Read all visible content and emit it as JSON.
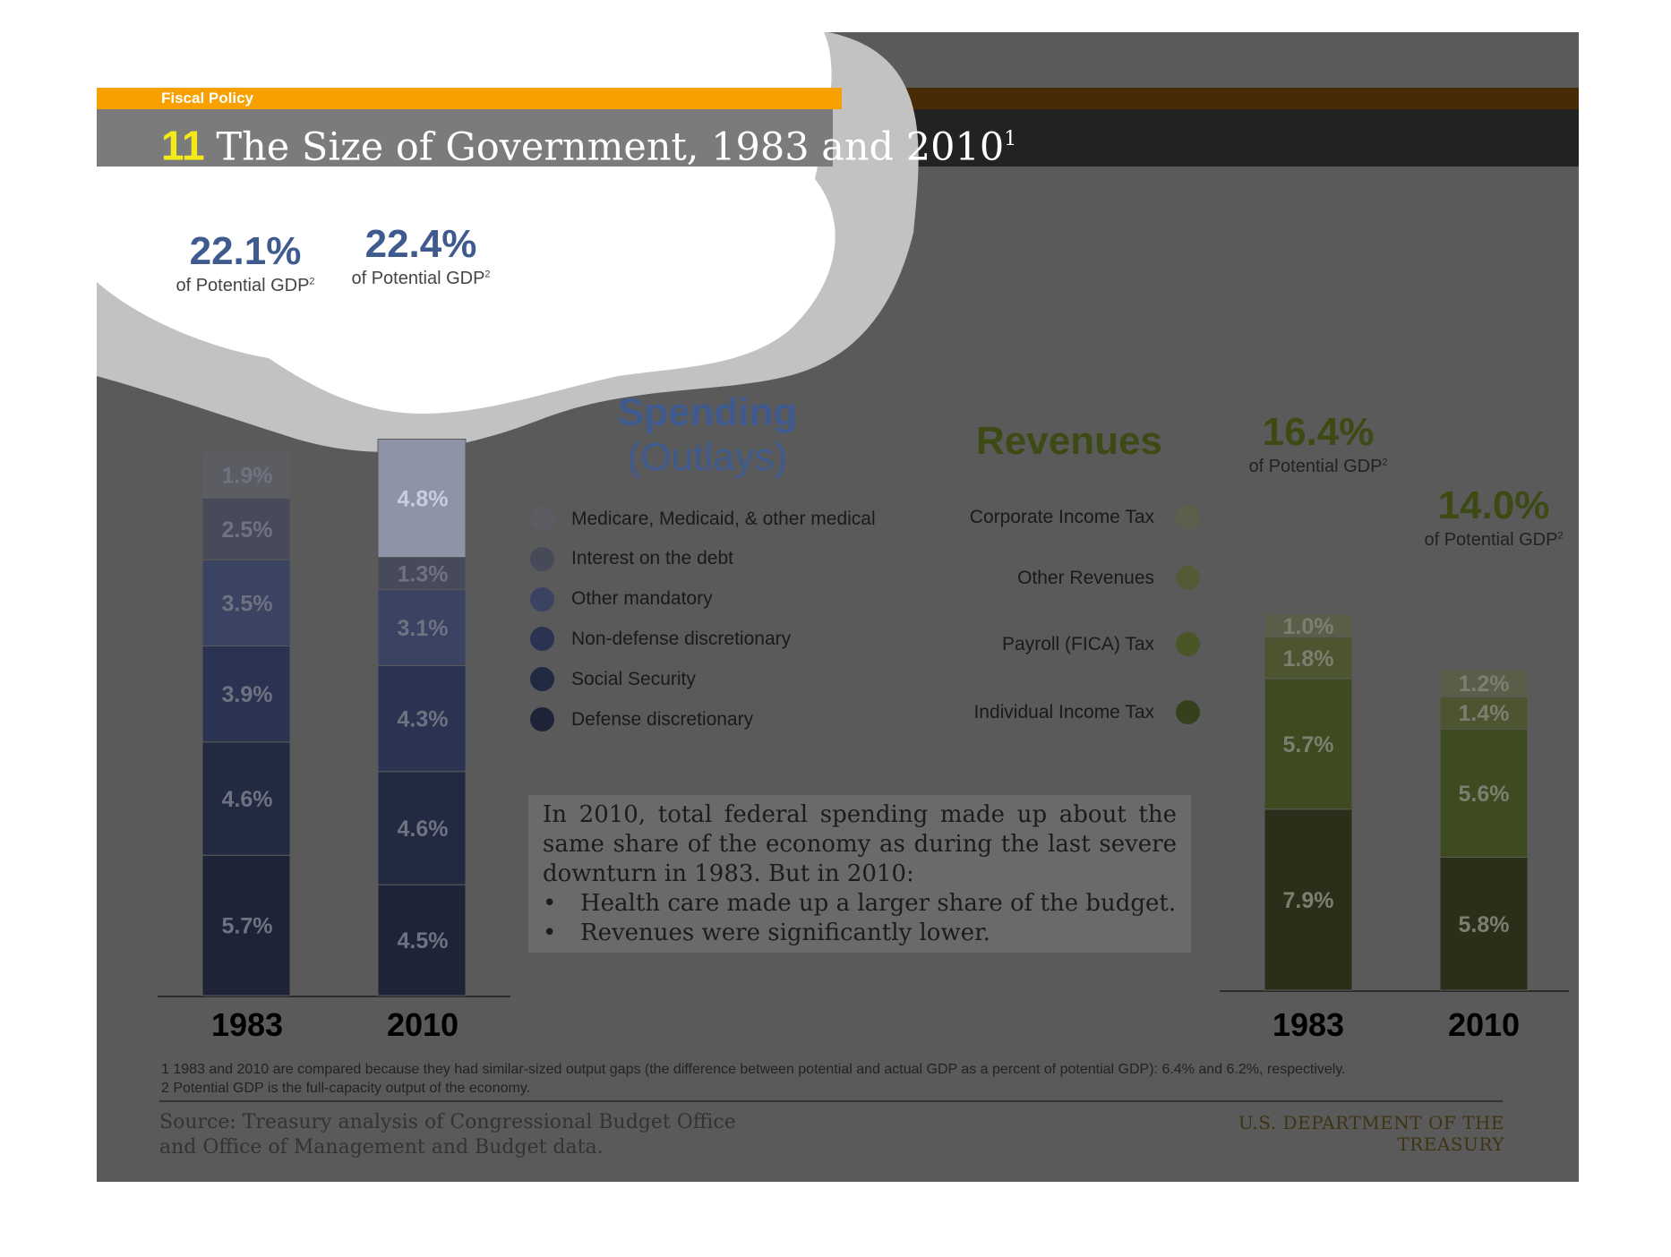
{
  "header": {
    "section": "Fiscal Policy",
    "number": "11",
    "title": "The Size of Government, 1983 and 2010",
    "title_sup": "1"
  },
  "spending": {
    "heading": "Spending",
    "subheading": "(Outlays)",
    "totals": [
      {
        "year": "1983",
        "value": "22.1%",
        "note": "of Potential GDP",
        "sup": "2"
      },
      {
        "year": "2010",
        "value": "22.4%",
        "note": "of Potential GDP",
        "sup": "2"
      }
    ],
    "legend": [
      {
        "label": "Medicare, Medicaid, & other medical",
        "color": "#5c5d63"
      },
      {
        "label": "Interest on the debt",
        "color": "#474a58"
      },
      {
        "label": "Other mandatory",
        "color": "#3b4362"
      },
      {
        "label": "Non-defense discretionary",
        "color": "#2a3452"
      },
      {
        "label": "Social Security",
        "color": "#222a42"
      },
      {
        "label": "Defense discretionary",
        "color": "#1e2337"
      }
    ]
  },
  "revenues": {
    "heading": "Revenues",
    "totals": [
      {
        "year": "1983",
        "value": "16.4%",
        "note": "of Potential GDP",
        "sup": "2"
      },
      {
        "year": "2010",
        "value": "14.0%",
        "note": "of Potential GDP",
        "sup": "2"
      }
    ],
    "legend": [
      {
        "label": "Corporate Income Tax",
        "color": "#5d5e4c"
      },
      {
        "label": "Other Revenues",
        "color": "#555a36"
      },
      {
        "label": "Payroll (FICA) Tax",
        "color": "#4b5626"
      },
      {
        "label": "Individual Income Tax",
        "color": "#36401c"
      }
    ]
  },
  "textbox": {
    "paragraph": "In 2010, total federal spending made up about the same share of the economy as during the last severe downturn in 1983. But in 2010:",
    "bullets": [
      "Health care made up a larger share of the budget.",
      "Revenues were significantly lower."
    ]
  },
  "footnotes": [
    "1 1983 and 2010 are compared because they had similar-sized output gaps (the difference between potential and actual GDP as a percent of potential GDP): 6.4% and 6.2%, respectively.",
    "2 Potential GDP is the full-capacity output of the economy."
  ],
  "source": [
    "Source: Treasury analysis of Congressional Budget Office",
    "and Office of Management and Budget data."
  ],
  "agency": "U.S. DEPARTMENT OF THE TREASURY",
  "colors": {
    "orange_bar": "#f7a000",
    "title_bar": "#7b7b7b",
    "overlay_gray": "#5a5a5a",
    "spending_blue": "#3f5a8f",
    "revenue_olive": "#3e4a14",
    "number_yellow": "#f5ea17"
  },
  "chart_data": [
    {
      "type": "bar",
      "stacked": true,
      "title": "Spending",
      "categories": [
        "1983",
        "2010"
      ],
      "series": [
        {
          "name": "Defense discretionary",
          "values": [
            5.7,
            4.5
          ]
        },
        {
          "name": "Social Security",
          "values": [
            4.6,
            4.6
          ]
        },
        {
          "name": "Non-defense discretionary",
          "values": [
            3.9,
            4.3
          ]
        },
        {
          "name": "Other mandatory",
          "values": [
            3.5,
            3.1
          ]
        },
        {
          "name": "Interest on the debt",
          "values": [
            2.5,
            1.3
          ]
        },
        {
          "name": "Medicare, Medicaid, & other medical",
          "values": [
            1.9,
            4.8
          ]
        }
      ],
      "labels": [
        [
          "5.7%",
          "4.6%",
          "3.9%",
          "3.5%",
          "2.5%",
          "1.9%"
        ],
        [
          "4.5%",
          "4.6%",
          "4.3%",
          "3.1%",
          "1.3%",
          "4.8%"
        ]
      ]
    },
    {
      "type": "bar",
      "stacked": true,
      "title": "Revenues",
      "categories": [
        "1983",
        "2010"
      ],
      "series": [
        {
          "name": "Individual Income Tax",
          "values": [
            7.9,
            5.8
          ]
        },
        {
          "name": "Payroll (FICA) Tax",
          "values": [
            5.7,
            5.6
          ]
        },
        {
          "name": "Other Revenues",
          "values": [
            1.8,
            1.4
          ]
        },
        {
          "name": "Corporate Income Tax",
          "values": [
            1.0,
            1.2
          ]
        }
      ],
      "labels": [
        [
          "7.9%",
          "5.7%",
          "1.8%",
          "1.0%"
        ],
        [
          "5.8%",
          "5.6%",
          "1.4%",
          "1.2%"
        ]
      ]
    }
  ]
}
